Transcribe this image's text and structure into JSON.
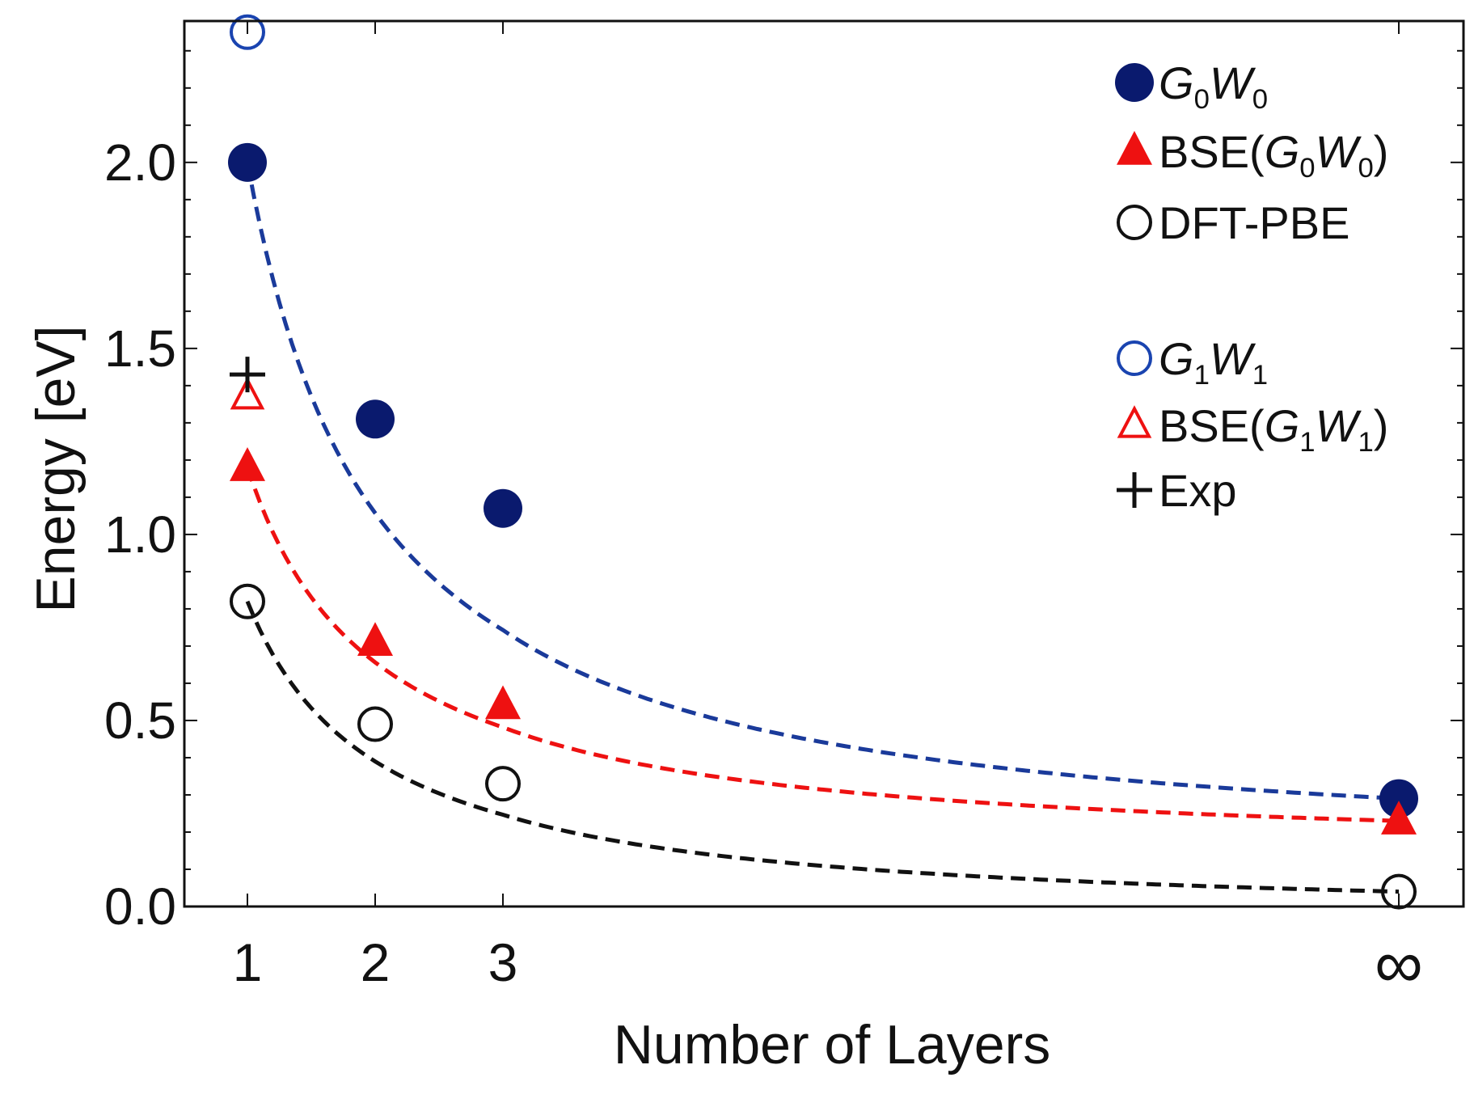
{
  "chart_data": {
    "type": "scatter",
    "title": "",
    "xlabel": "Number of Layers",
    "ylabel": "Energy [eV]",
    "x_categories": [
      "1",
      "2",
      "3",
      "∞"
    ],
    "y_ticks": [
      "0.0",
      "0.5",
      "1.0",
      "1.5",
      "2.0"
    ],
    "ylim": [
      0,
      2.38
    ],
    "series": [
      {
        "name": "G0W0",
        "legend_main": "G",
        "legend_sub1": "0",
        "legend_mid": "W",
        "legend_sub2": "0",
        "legend_prefix": "",
        "legend_suffix": "",
        "marker": "circle-filled",
        "color": "#0a1a6e",
        "x": [
          "1",
          "2",
          "3",
          "∞"
        ],
        "values": [
          2.0,
          1.31,
          1.07,
          0.29
        ],
        "fit_line": true,
        "line_color": "#1a3a9a"
      },
      {
        "name": "BSE(G0W0)",
        "legend_main": "G",
        "legend_sub1": "0",
        "legend_mid": "W",
        "legend_sub2": "0",
        "legend_prefix": "BSE(",
        "legend_suffix": ")",
        "marker": "triangle-filled",
        "color": "#ee1111",
        "x": [
          "1",
          "2",
          "3",
          "∞"
        ],
        "values": [
          1.18,
          0.71,
          0.54,
          0.23
        ],
        "fit_line": true,
        "line_color": "#ee1111"
      },
      {
        "name": "DFT-PBE",
        "legend_text": "DFT-PBE",
        "marker": "circle-open",
        "color": "#111111",
        "x": [
          "1",
          "2",
          "3",
          "∞"
        ],
        "values": [
          0.82,
          0.49,
          0.33,
          0.04
        ],
        "fit_line": true,
        "line_color": "#111111"
      },
      {
        "name": "G1W1",
        "legend_main": "G",
        "legend_sub1": "1",
        "legend_mid": "W",
        "legend_sub2": "1",
        "legend_prefix": "",
        "legend_suffix": "",
        "marker": "circle-open",
        "color": "#1a44b0",
        "x": [
          "1"
        ],
        "values": [
          2.35
        ],
        "fit_line": false
      },
      {
        "name": "BSE(G1W1)",
        "legend_main": "G",
        "legend_sub1": "1",
        "legend_mid": "W",
        "legend_sub2": "1",
        "legend_prefix": "BSE(",
        "legend_suffix": ")",
        "marker": "triangle-open",
        "color": "#ee1111",
        "x": [
          "1"
        ],
        "values": [
          1.37
        ],
        "fit_line": false
      },
      {
        "name": "Exp",
        "legend_text": "Exp",
        "marker": "plus",
        "color": "#111111",
        "x": [
          "1"
        ],
        "values": [
          1.43
        ],
        "fit_line": false
      }
    ],
    "legend_position": "top-right"
  }
}
